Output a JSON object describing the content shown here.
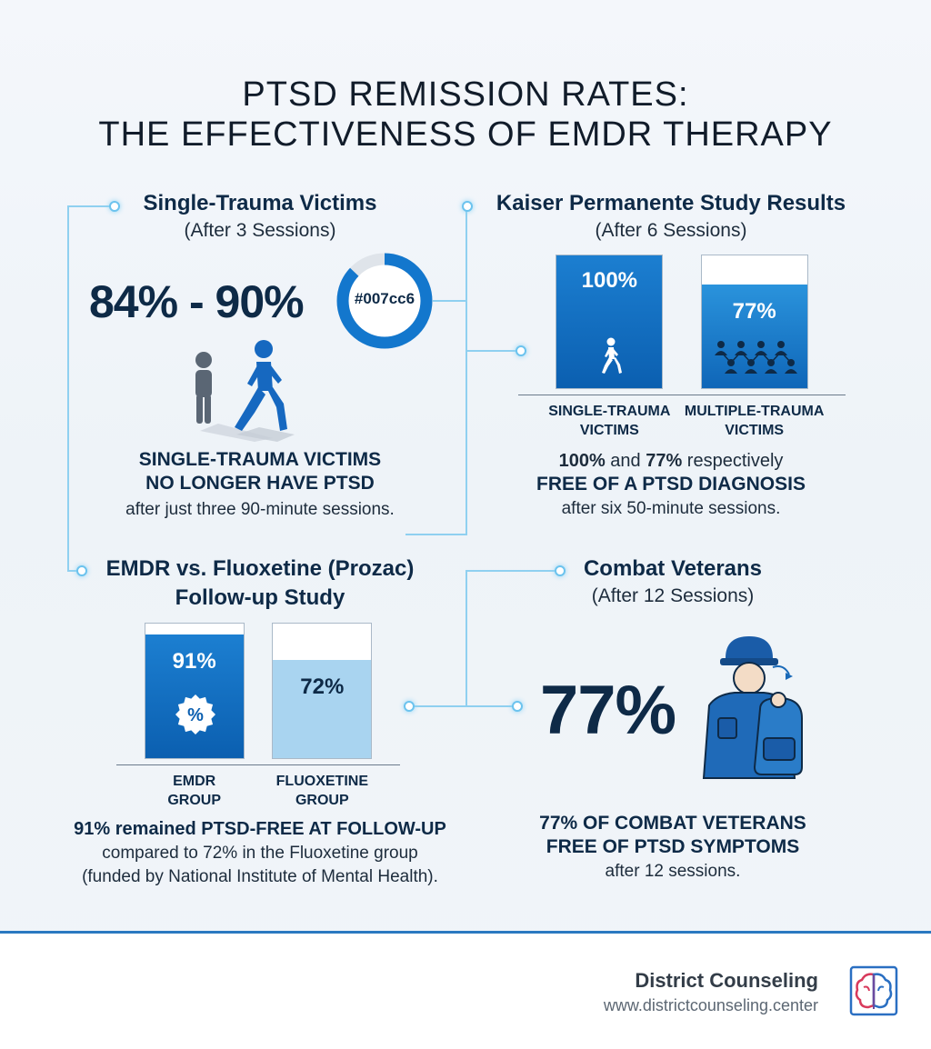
{
  "title": {
    "line1": "PTSD REMISSION RATES:",
    "line2": "THE EFFECTIVENESS OF EMDR THERAPY"
  },
  "colors": {
    "accent": "#007cc6",
    "navy": "#0e2a47",
    "bar_dark": "#0b5fb0",
    "bar_light": "#a9d4f0",
    "connector": "#8fd0f0"
  },
  "single_trauma": {
    "title": "Single-Trauma Victims",
    "subtitle": "(After 3 Sessions)",
    "stat": "84% - 90%",
    "ring_label": "#007cc6",
    "ring_fill": 0.87,
    "icon": "walking-people-icon",
    "caption_line1": "SINGLE-TRAUMA VICTIMS",
    "caption_line2": "NO LONGER HAVE PTSD",
    "caption_line3": "after just three 90-minute sessions."
  },
  "kaiser": {
    "title": "Kaiser Permanente Study Results",
    "subtitle": "(After 6 Sessions)",
    "caption_pct_a": "100%",
    "caption_and": " and ",
    "caption_pct_b": "77%",
    "caption_rest": " respectively",
    "caption_line2": "FREE OF A PTSD DIAGNOSIS",
    "caption_line3": "after six 50-minute sessions."
  },
  "fluoxetine": {
    "title_line1": "EMDR vs. Fluoxetine (Prozac)",
    "title_line2": "Follow-up Study",
    "caption_line1": "91% remained PTSD-FREE AT FOLLOW-UP",
    "caption_line2": "compared to 72% in the Fluoxetine group",
    "caption_line3": "(funded by National Institute of Mental Health)."
  },
  "veterans": {
    "title": "Combat Veterans",
    "subtitle": "(After 12 Sessions)",
    "stat": "77%",
    "icon": "soldier-backpack-icon",
    "caption_line1": "77% OF COMBAT VETERANS",
    "caption_line2": "FREE OF PTSD SYMPTOMS",
    "caption_line3": "after 12 sessions."
  },
  "footer": {
    "brand": "District Counseling",
    "url": "www.districtcounseling.center",
    "logo_icon": "brain-icon"
  },
  "chart_data": [
    {
      "type": "bar",
      "title": "Kaiser Permanente Study Results",
      "categories": [
        "SINGLE-TRAUMA VICTIMS",
        "MULTIPLE-TRAUMA VICTIMS"
      ],
      "category_lines": [
        [
          "SINGLE-TRAUMA",
          "VICTIMS"
        ],
        [
          "MULTIPLE-TRAUMA",
          "VICTIMS"
        ]
      ],
      "values": [
        100,
        77
      ],
      "data_labels": [
        "100%",
        "77%"
      ],
      "ylim": [
        0,
        100
      ]
    },
    {
      "type": "bar",
      "title": "EMDR vs. Fluoxetine (Prozac) Follow-up Study",
      "categories": [
        "EMDR GROUP",
        "FLUOXETINE GROUP"
      ],
      "category_lines": [
        [
          "EMDR",
          "GROUP"
        ],
        [
          "FLUOXETINE",
          "GROUP"
        ]
      ],
      "values": [
        91,
        72
      ],
      "data_labels": [
        "91%",
        "72%"
      ],
      "badge": "%",
      "ylim": [
        0,
        100
      ]
    }
  ]
}
